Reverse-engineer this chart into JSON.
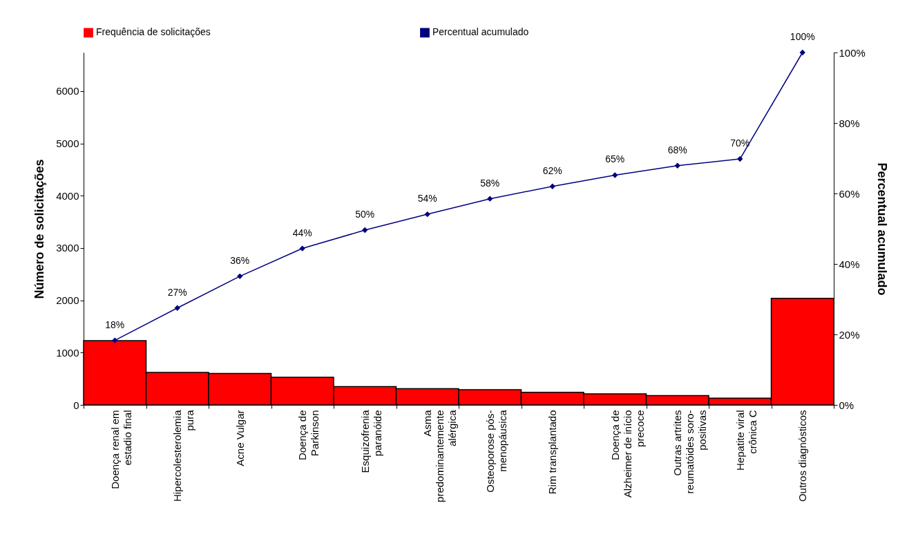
{
  "chart_data": {
    "type": "bar",
    "categories": [
      "Doença renal em\nestadio final",
      "Hipercolesterolemia\npura",
      "Acne Vulgar",
      "Doença de\nParkinson",
      "Esquizofrenia\nparanóide",
      "Asma\npredominantemente\nalérgica",
      "Osteoporose pós-\nmenopáusica",
      "Rim transplantado",
      "Doença de\nAlzheimer de início\nprecoce",
      "Outras artrites\nreumatóides soro-\npositivas",
      "Hepatite viral\ncrônica C",
      "Outros diagnósticos"
    ],
    "series": [
      {
        "name": "Frequência de solicitações",
        "color": "#ff0000",
        "values": [
          1230,
          620,
          600,
          530,
          350,
          310,
          290,
          240,
          210,
          180,
          130,
          2040
        ]
      },
      {
        "name": "Percentual acumulado",
        "type": "line",
        "axis": "y2",
        "color": "#000080",
        "marker": "diamond",
        "line_style": "solid",
        "values": [
          18.3,
          27.5,
          36.5,
          44.4,
          49.6,
          54.1,
          58.5,
          62.0,
          65.2,
          67.9,
          69.8,
          100
        ],
        "value_labels": [
          "18%",
          "27%",
          "36%",
          "44%",
          "50%",
          "54%",
          "58%",
          "62%",
          "65%",
          "68%",
          "70%",
          "100%"
        ]
      }
    ],
    "ylabel": "Número de solicitações",
    "y2label": "Percentual acumulado",
    "ylim": [
      0,
      6740
    ],
    "yticks": [
      0,
      1000,
      2000,
      3000,
      4000,
      5000,
      6000
    ],
    "y2lim": [
      0,
      100
    ],
    "y2ticks": [
      {
        "value": 0,
        "label": "0%"
      },
      {
        "value": 20,
        "label": "20%"
      },
      {
        "value": 40,
        "label": "40%"
      },
      {
        "value": 60,
        "label": "60%"
      },
      {
        "value": 80,
        "label": "80%"
      },
      {
        "value": 100,
        "label": "100%"
      }
    ],
    "legend": "top",
    "grid": false
  }
}
